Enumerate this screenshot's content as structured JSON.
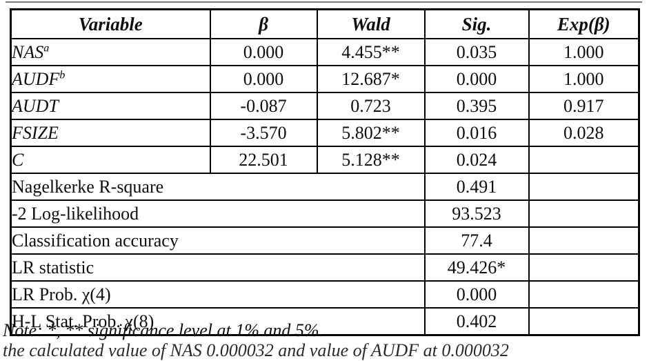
{
  "table": {
    "headers": {
      "variable": "Variable",
      "beta": "β",
      "wald": "Wald",
      "sig": "Sig.",
      "exp": "Exp(β)"
    },
    "variable_rows": [
      {
        "name": "NAS",
        "sup": "a",
        "beta": "0.000",
        "wald": "4.455**",
        "sig": "0.035",
        "exp": "1.000"
      },
      {
        "name": "AUDF",
        "sup": "b",
        "beta": "0.000",
        "wald": "12.687*",
        "sig": "0.000",
        "exp": "1.000"
      },
      {
        "name": "AUDT",
        "sup": "",
        "beta": "-0.087",
        "wald": "0.723",
        "sig": "0.395",
        "exp": "0.917"
      },
      {
        "name": "FSIZE",
        "sup": "",
        "beta": "-3.570",
        "wald": "5.802**",
        "sig": "0.016",
        "exp": "0.028"
      },
      {
        "name": "C",
        "sup": "",
        "beta": "22.501",
        "wald": "5.128**",
        "sig": "0.024",
        "exp": ""
      }
    ],
    "summary_rows": [
      {
        "label": "Nagelkerke R-square",
        "value": "0.491"
      },
      {
        "label": "-2 Log-likelihood",
        "value": "93.523"
      },
      {
        "label": "Classification accuracy",
        "value": "77.4"
      },
      {
        "label": "LR statistic",
        "value": "49.426*"
      },
      {
        "label": "LR Prob. χ(4)",
        "value": "0.000"
      },
      {
        "label": "H-L Stat. Prob. χ(8)",
        "value": "0.402"
      }
    ]
  },
  "notes": {
    "line1": "Note: *, ** significance level at 1% and 5%.",
    "line2_partial": "the calculated value of NAS 0.000032 and value of AUDF at 0.000032"
  },
  "colors": {
    "border": "#000000",
    "text": "#0e0e0e",
    "background": "#ffffff"
  }
}
